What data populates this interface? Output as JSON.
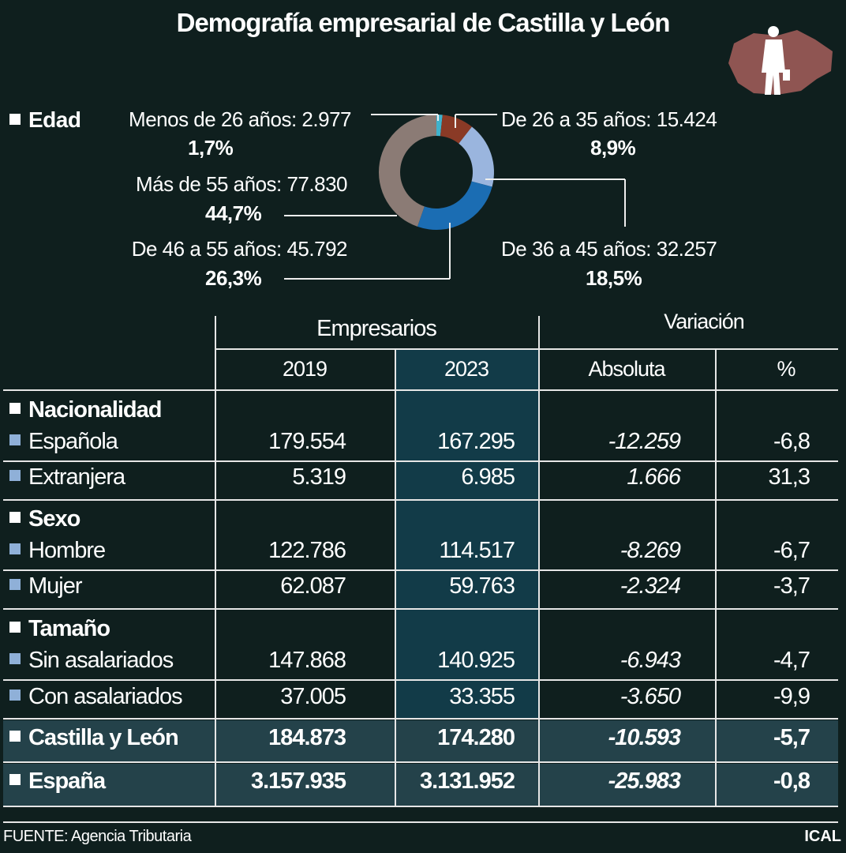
{
  "title": "Demografía empresarial de Castilla y León",
  "edad": {
    "heading": "Edad",
    "segments": [
      {
        "label": "Menos de 26 años: 2.977",
        "pct": "1,7%",
        "value": 2977,
        "color": "#3fb2cc"
      },
      {
        "label": "De 26 a 35 años: 15.424",
        "pct": "8,9%",
        "value": 15424,
        "color": "#8a3a26"
      },
      {
        "label": "De 36 a 45 años: 32.257",
        "pct": "18,5%",
        "value": 32257,
        "color": "#9ab5de"
      },
      {
        "label": "De 46 a 55 años: 45.792",
        "pct": "26,3%",
        "value": 45792,
        "color": "#1b6db3"
      },
      {
        "label": "Más de 55 años: 77.830",
        "pct": "44,7%",
        "value": 77830,
        "color": "#8b7b75"
      }
    ]
  },
  "chart_data": {
    "type": "pie",
    "donut": true,
    "categories": [
      "Menos de 26 años",
      "De 26 a 35 años",
      "De 36 a 45 años",
      "De 46 a 55 años",
      "Más de 55 años"
    ],
    "values": [
      2977,
      15424,
      32257,
      45792,
      77830
    ],
    "percentages": [
      1.7,
      8.9,
      18.5,
      26.3,
      44.7
    ]
  },
  "table": {
    "group_headers": [
      "Empresarios",
      "Variación"
    ],
    "columns": [
      "2019",
      "2023",
      "Absoluta",
      "%"
    ],
    "sections": [
      {
        "title": "Nacionalidad",
        "rows": [
          {
            "label": "Española",
            "v2019": "179.554",
            "v2023": "167.295",
            "abs": "-12.259",
            "pct": "-6,8"
          },
          {
            "label": "Extranjera",
            "v2019": "5.319",
            "v2023": "6.985",
            "abs": "1.666",
            "pct": "31,3"
          }
        ]
      },
      {
        "title": "Sexo",
        "rows": [
          {
            "label": "Hombre",
            "v2019": "122.786",
            "v2023": "114.517",
            "abs": "-8.269",
            "pct": "-6,7"
          },
          {
            "label": "Mujer",
            "v2019": "62.087",
            "v2023": "59.763",
            "abs": "-2.324",
            "pct": "-3,7"
          }
        ]
      },
      {
        "title": "Tamaño",
        "rows": [
          {
            "label": "Sin asalariados",
            "v2019": "147.868",
            "v2023": "140.925",
            "abs": "-6.943",
            "pct": "-4,7"
          },
          {
            "label": "Con asalariados",
            "v2019": "37.005",
            "v2023": "33.355",
            "abs": "-3.650",
            "pct": "-9,9"
          }
        ]
      }
    ],
    "totals": [
      {
        "label": "Castilla y León",
        "v2019": "184.873",
        "v2023": "174.280",
        "abs": "-10.593",
        "pct": "-5,7"
      },
      {
        "label": "España",
        "v2019": "3.157.935",
        "v2023": "3.131.952",
        "abs": "-25.983",
        "pct": "-0,8"
      }
    ]
  },
  "footer": {
    "source": "FUENTE: Agencia Tributaria",
    "credit": "ICAL"
  },
  "colors": {
    "background": "#0f1f1e",
    "highlight_column": "#123b48",
    "total_row": "#24424a"
  }
}
